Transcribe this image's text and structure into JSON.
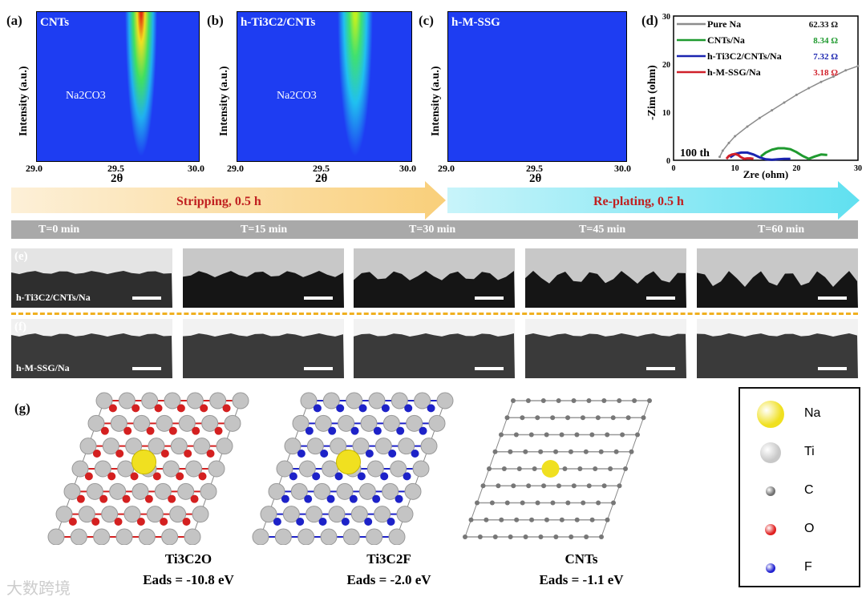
{
  "panels": {
    "a": {
      "label": "(a)",
      "title": "CNTs",
      "peak": "Na2CO3"
    },
    "b": {
      "label": "(b)",
      "title": "h-Ti3C2/CNTs",
      "peak": "Na2CO3"
    },
    "c": {
      "label": "(c)",
      "title": "h-M-SSG"
    },
    "xrd_ylabel": "Intensity (a.u.)",
    "xrd_xlabel": "2θ",
    "xrd_ticks": [
      "29.0",
      "29.5",
      "30.0"
    ],
    "d": {
      "label": "(d)",
      "xlabel": "Zre (ohm)",
      "ylabel": "-Zim (ohm)",
      "note": "100 th",
      "xticks": [
        "0",
        "10",
        "20",
        "30"
      ],
      "yticks": [
        "0",
        "10",
        "20",
        "30"
      ],
      "legend": [
        {
          "name": "Pure Na",
          "value": "62.33 Ω",
          "color": "#8c8c8c"
        },
        {
          "name": "CNTs/Na",
          "value": "8.34 Ω",
          "color": "#1f9a2f"
        },
        {
          "name": "h-Ti3C2/CNTs/Na",
          "value": "7.32 Ω",
          "color": "#1a24b0"
        },
        {
          "name": "h-M-SSG/Na",
          "value": "3.18 Ω",
          "color": "#d0202a"
        }
      ]
    }
  },
  "chart_data": {
    "type": "line",
    "title": "",
    "xlabel": "Zre (ohm)",
    "ylabel": "-Zim (ohm)",
    "xlim": [
      0,
      30
    ],
    "ylim": [
      0,
      30
    ],
    "series": [
      {
        "name": "Pure Na",
        "x": [
          7.5,
          8,
          9,
          10,
          12,
          14,
          16,
          18,
          20,
          22,
          24,
          26,
          28,
          30
        ],
        "y": [
          0.7,
          2,
          3.6,
          5,
          7,
          8.8,
          10.4,
          12,
          13.6,
          15,
          16.3,
          17.4,
          18.7,
          19.6
        ]
      },
      {
        "name": "CNTs/Na",
        "x": [
          14.2,
          15,
          16,
          17,
          18,
          19,
          20,
          21,
          22,
          23,
          24,
          25
        ],
        "y": [
          0.8,
          1.6,
          2.2,
          2.5,
          2.5,
          2.3,
          1.7,
          0.9,
          0.3,
          0.8,
          1.2,
          1.1
        ]
      },
      {
        "name": "h-Ti3C2/CNTs/Na",
        "x": [
          9.2,
          10,
          11,
          12,
          13,
          14,
          15,
          16,
          17,
          18,
          19
        ],
        "y": [
          0.6,
          1.3,
          1.6,
          1.6,
          1.2,
          0.6,
          0.2,
          0.1,
          0.2,
          0.3,
          0.3
        ]
      },
      {
        "name": "h-M-SSG/Na",
        "x": [
          8.6,
          9,
          9.5,
          10,
          10.5,
          11,
          11.5,
          12,
          12.5,
          13
        ],
        "y": [
          0.3,
          0.9,
          1.2,
          1.3,
          1.1,
          0.6,
          0.3,
          0.4,
          0.4,
          0.3
        ]
      }
    ]
  },
  "timeline": {
    "stripping": "Stripping, 0.5 h",
    "replating": "Re-plating, 0.5 h",
    "times": [
      "T=0 min",
      "T=15 min",
      "T=30 min",
      "T=45 min",
      "T=60 min"
    ]
  },
  "rows": {
    "e": {
      "label": "(e)",
      "sample": "h-Ti3C2/CNTs/Na"
    },
    "f": {
      "label": "(f)",
      "sample": "h-M-SSG/Na"
    }
  },
  "g": {
    "label": "(g)",
    "structures": [
      {
        "name": "Ti3C2O",
        "eads": "Eads = -10.8 eV",
        "term": "#d42020"
      },
      {
        "name": "Ti3C2F",
        "eads": "Eads = -2.0 eV",
        "term": "#1d22c8"
      },
      {
        "name": "CNTs",
        "eads": "Eads = -1.1 eV"
      }
    ],
    "legend": [
      {
        "el": "Na",
        "color": "#f0e020"
      },
      {
        "el": "Ti",
        "color": "#c8c8c8"
      },
      {
        "el": "C",
        "color": "#707070"
      },
      {
        "el": "O",
        "color": "#e02020"
      },
      {
        "el": "F",
        "color": "#2020d0"
      }
    ]
  },
  "watermark": "大数跨境"
}
